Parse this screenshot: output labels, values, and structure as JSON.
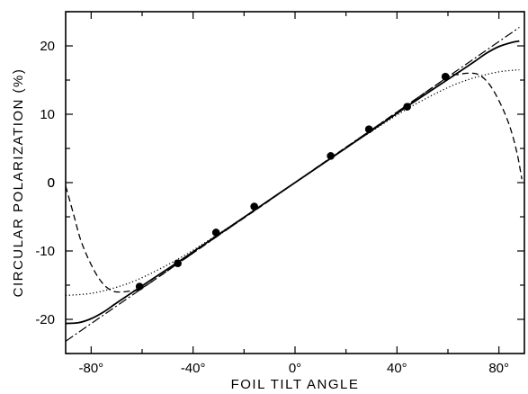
{
  "chart_data": {
    "type": "scatter",
    "title": "",
    "xlabel": "FOIL TILT ANGLE",
    "ylabel": "CIRCULAR POLARIZATION (%)",
    "xlim": [
      -90,
      90
    ],
    "ylim": [
      -25,
      25
    ],
    "x_ticks": [
      -80,
      -40,
      0,
      40,
      80
    ],
    "x_tick_labels": [
      "-80°",
      "-40°",
      "0°",
      "40°",
      "80°"
    ],
    "y_ticks": [
      -20,
      -10,
      0,
      10,
      20
    ],
    "y_tick_labels": [
      "-20",
      "-10",
      "0",
      "10",
      "20"
    ],
    "grid": false,
    "series": [
      {
        "style": "points",
        "x": [
          -61,
          -46,
          -31,
          -16,
          14,
          29,
          44,
          59
        ],
        "y": [
          -15.2,
          -11.8,
          -7.3,
          -3.5,
          3.9,
          7.8,
          11.1,
          15.5
        ]
      },
      {
        "style": "solid",
        "x": [
          -90,
          -85,
          -80,
          -75,
          -70,
          -60,
          -45,
          -30,
          -15,
          0,
          15,
          30,
          45,
          60,
          70,
          75,
          80,
          85,
          88
        ],
        "y": [
          -20.6,
          -20.5,
          -19.9,
          -18.9,
          -17.6,
          -15.1,
          -11.4,
          -7.6,
          -3.8,
          0,
          3.8,
          7.6,
          11.4,
          15.1,
          17.6,
          18.9,
          19.9,
          20.5,
          20.7
        ]
      },
      {
        "style": "dash-dot",
        "x": [
          -90,
          88
        ],
        "y": [
          -23.2,
          22.7
        ]
      },
      {
        "style": "dotted",
        "x": [
          -90,
          -80,
          -70,
          -60,
          -45,
          -30,
          -15,
          0,
          15,
          30,
          45,
          60,
          70,
          80,
          88
        ],
        "y": [
          -16.5,
          -16.2,
          -15.3,
          -13.9,
          -11.0,
          -7.5,
          -3.8,
          0,
          3.8,
          7.5,
          11.0,
          13.9,
          15.3,
          16.2,
          16.5
        ]
      },
      {
        "style": "dashed",
        "x": [
          -90,
          -87,
          -84,
          -80,
          -76,
          -72,
          -68,
          -64,
          -60,
          -45,
          -30,
          -15,
          0,
          15,
          30,
          45,
          60,
          64,
          68,
          72,
          76,
          80,
          84,
          87,
          89
        ],
        "y": [
          -0.5,
          -4.5,
          -8.5,
          -12.0,
          -14.5,
          -15.8,
          -16.0,
          -15.8,
          -15.4,
          -11.6,
          -7.7,
          -3.9,
          0,
          3.9,
          7.7,
          11.6,
          15.4,
          15.8,
          16.0,
          15.8,
          14.5,
          12.0,
          8.5,
          4.5,
          0.5
        ]
      }
    ]
  }
}
